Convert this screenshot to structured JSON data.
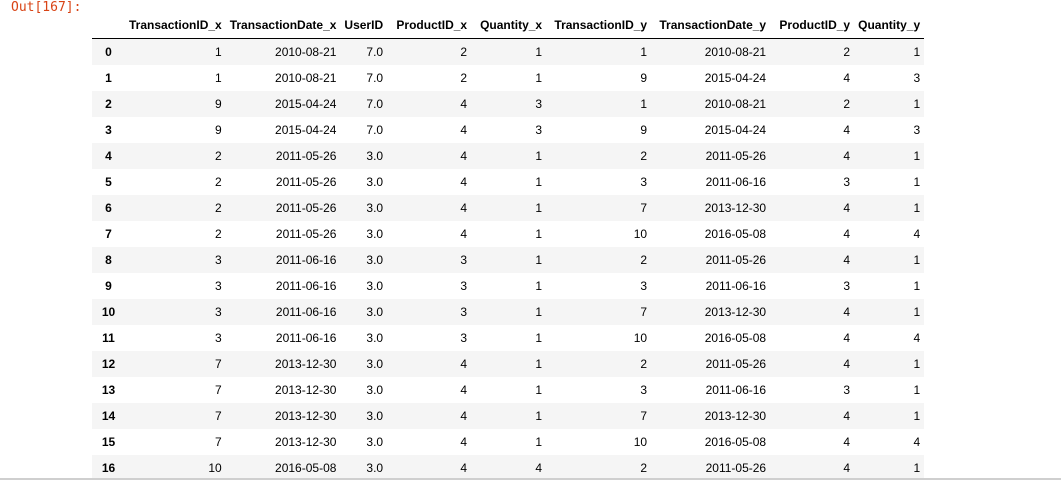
{
  "prompt": "Out[167]:",
  "table": {
    "columns": [
      "",
      "TransactionID_x",
      "TransactionDate_x",
      "UserID",
      "ProductID_x",
      "Quantity_x",
      "TransactionID_y",
      "TransactionDate_y",
      "ProductID_y",
      "Quantity_y"
    ],
    "rows": [
      [
        "0",
        "1",
        "2010-08-21",
        "7.0",
        "2",
        "1",
        "1",
        "2010-08-21",
        "2",
        "1"
      ],
      [
        "1",
        "1",
        "2010-08-21",
        "7.0",
        "2",
        "1",
        "9",
        "2015-04-24",
        "4",
        "3"
      ],
      [
        "2",
        "9",
        "2015-04-24",
        "7.0",
        "4",
        "3",
        "1",
        "2010-08-21",
        "2",
        "1"
      ],
      [
        "3",
        "9",
        "2015-04-24",
        "7.0",
        "4",
        "3",
        "9",
        "2015-04-24",
        "4",
        "3"
      ],
      [
        "4",
        "2",
        "2011-05-26",
        "3.0",
        "4",
        "1",
        "2",
        "2011-05-26",
        "4",
        "1"
      ],
      [
        "5",
        "2",
        "2011-05-26",
        "3.0",
        "4",
        "1",
        "3",
        "2011-06-16",
        "3",
        "1"
      ],
      [
        "6",
        "2",
        "2011-05-26",
        "3.0",
        "4",
        "1",
        "7",
        "2013-12-30",
        "4",
        "1"
      ],
      [
        "7",
        "2",
        "2011-05-26",
        "3.0",
        "4",
        "1",
        "10",
        "2016-05-08",
        "4",
        "4"
      ],
      [
        "8",
        "3",
        "2011-06-16",
        "3.0",
        "3",
        "1",
        "2",
        "2011-05-26",
        "4",
        "1"
      ],
      [
        "9",
        "3",
        "2011-06-16",
        "3.0",
        "3",
        "1",
        "3",
        "2011-06-16",
        "3",
        "1"
      ],
      [
        "10",
        "3",
        "2011-06-16",
        "3.0",
        "3",
        "1",
        "7",
        "2013-12-30",
        "4",
        "1"
      ],
      [
        "11",
        "3",
        "2011-06-16",
        "3.0",
        "3",
        "1",
        "10",
        "2016-05-08",
        "4",
        "4"
      ],
      [
        "12",
        "7",
        "2013-12-30",
        "3.0",
        "4",
        "1",
        "2",
        "2011-05-26",
        "4",
        "1"
      ],
      [
        "13",
        "7",
        "2013-12-30",
        "3.0",
        "4",
        "1",
        "3",
        "2011-06-16",
        "3",
        "1"
      ],
      [
        "14",
        "7",
        "2013-12-30",
        "3.0",
        "4",
        "1",
        "7",
        "2013-12-30",
        "4",
        "1"
      ],
      [
        "15",
        "7",
        "2013-12-30",
        "3.0",
        "4",
        "1",
        "10",
        "2016-05-08",
        "4",
        "4"
      ],
      [
        "16",
        "10",
        "2016-05-08",
        "3.0",
        "4",
        "4",
        "2",
        "2011-05-26",
        "4",
        "1"
      ]
    ]
  }
}
